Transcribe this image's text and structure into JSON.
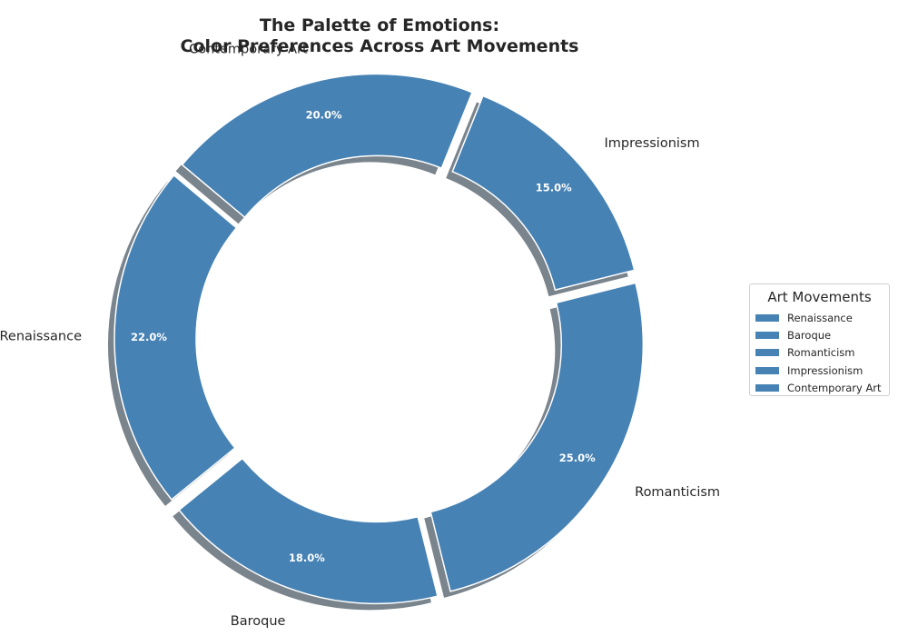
{
  "title_line1": "The Palette of Emotions:",
  "title_line2": "Color Preferences Across Art Movements",
  "chart_data": {
    "type": "pie",
    "style": "donut",
    "title": "The Palette of Emotions:\nColor Preferences Across Art Movements",
    "categories": [
      "Renaissance",
      "Baroque",
      "Romanticism",
      "Impressionism",
      "Contemporary Art"
    ],
    "values": [
      22.0,
      18.0,
      25.0,
      15.0,
      20.0
    ],
    "value_labels": [
      "22.0%",
      "18.0%",
      "25.0%",
      "15.0%",
      "20.0%"
    ],
    "start_angle_deg": 140,
    "color": "#4682b4",
    "edge_color": "#ffffff",
    "label_color": "#ffffff",
    "shadow_color": "#7a848c",
    "legend": {
      "title": "Art Movements",
      "entries": [
        "Renaissance",
        "Baroque",
        "Romanticism",
        "Impressionism",
        "Contemporary Art"
      ],
      "placement": "center-right"
    }
  }
}
